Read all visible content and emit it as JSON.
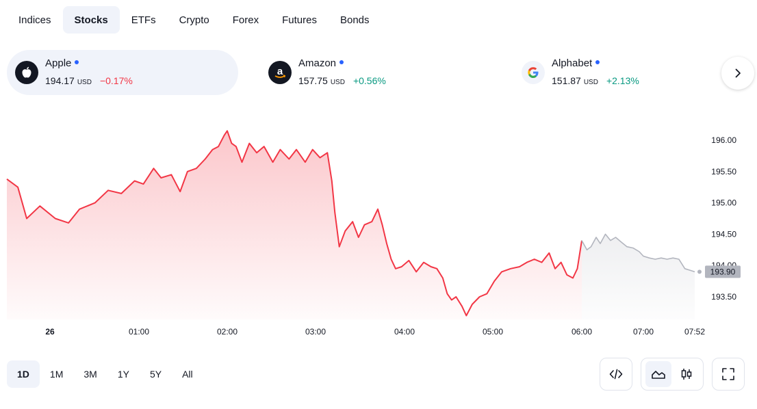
{
  "tabs": [
    {
      "label": "Indices",
      "active": false
    },
    {
      "label": "Stocks",
      "active": true
    },
    {
      "label": "ETFs",
      "active": false
    },
    {
      "label": "Crypto",
      "active": false
    },
    {
      "label": "Forex",
      "active": false
    },
    {
      "label": "Futures",
      "active": false
    },
    {
      "label": "Bonds",
      "active": false
    }
  ],
  "tickers": [
    {
      "name": "Apple",
      "price": "194.17",
      "currency": "USD",
      "change": "−0.17%",
      "direction": "down",
      "icon": "apple-logo"
    },
    {
      "name": "Amazon",
      "price": "157.75",
      "currency": "USD",
      "change": "+0.56%",
      "direction": "up",
      "icon": "amazon-logo"
    },
    {
      "name": "Alphabet",
      "price": "151.87",
      "currency": "USD",
      "change": "+2.13%",
      "direction": "up",
      "icon": "google-logo"
    }
  ],
  "next_icon": "chevron-right-icon",
  "colors": {
    "down": "#f23645",
    "up": "#089981",
    "accent": "#2962ff",
    "after_hours": "#b2b5be",
    "active_bg": "#f0f3fa"
  },
  "chart_data": {
    "type": "area",
    "x_tick_labels": [
      "26",
      "01:00",
      "02:00",
      "03:00",
      "04:00",
      "05:00",
      "06:00",
      "07:00",
      "07:52"
    ],
    "y_tick_labels": [
      "196.00",
      "195.50",
      "195.00",
      "194.50",
      "194.00",
      "193.50"
    ],
    "ylim": [
      193.2,
      196.3
    ],
    "last_value_label": "193.90",
    "regular_session": [
      [
        "00:00",
        195.38
      ],
      [
        "00:05",
        195.25
      ],
      [
        "00:09",
        194.75
      ],
      [
        "00:15",
        194.95
      ],
      [
        "00:22",
        194.75
      ],
      [
        "00:28",
        194.68
      ],
      [
        "00:33",
        194.9
      ],
      [
        "00:40",
        195.0
      ],
      [
        "00:46",
        195.2
      ],
      [
        "00:52",
        195.15
      ],
      [
        "00:58",
        195.35
      ],
      [
        "01:03",
        195.3
      ],
      [
        "01:10",
        195.55
      ],
      [
        "01:15",
        195.4
      ],
      [
        "01:22",
        195.45
      ],
      [
        "01:28",
        195.18
      ],
      [
        "01:33",
        195.5
      ],
      [
        "01:39",
        195.55
      ],
      [
        "01:45",
        195.7
      ],
      [
        "01:50",
        195.85
      ],
      [
        "01:54",
        195.9
      ],
      [
        "01:58",
        196.08
      ],
      [
        "02:00",
        196.15
      ],
      [
        "02:03",
        195.95
      ],
      [
        "02:06",
        195.9
      ],
      [
        "02:10",
        195.65
      ],
      [
        "02:15",
        195.95
      ],
      [
        "02:20",
        195.8
      ],
      [
        "02:25",
        195.9
      ],
      [
        "02:31",
        195.65
      ],
      [
        "02:36",
        195.85
      ],
      [
        "02:42",
        195.7
      ],
      [
        "02:47",
        195.85
      ],
      [
        "02:53",
        195.65
      ],
      [
        "02:58",
        195.85
      ],
      [
        "03:03",
        195.72
      ],
      [
        "03:08",
        195.8
      ],
      [
        "03:11",
        195.35
      ],
      [
        "03:13",
        194.85
      ],
      [
        "03:16",
        194.3
      ],
      [
        "03:20",
        194.55
      ],
      [
        "03:25",
        194.7
      ],
      [
        "03:29",
        194.45
      ],
      [
        "03:33",
        194.65
      ],
      [
        "03:38",
        194.7
      ],
      [
        "03:42",
        194.9
      ],
      [
        "03:45",
        194.65
      ],
      [
        "03:48",
        194.35
      ],
      [
        "03:51",
        194.1
      ],
      [
        "03:54",
        193.95
      ],
      [
        "03:58",
        193.98
      ],
      [
        "04:03",
        194.08
      ],
      [
        "04:08",
        193.9
      ],
      [
        "04:13",
        194.05
      ],
      [
        "04:18",
        193.98
      ],
      [
        "04:22",
        193.95
      ],
      [
        "04:26",
        193.8
      ],
      [
        "04:29",
        193.55
      ],
      [
        "04:32",
        193.45
      ],
      [
        "04:35",
        193.5
      ],
      [
        "04:39",
        193.35
      ],
      [
        "04:42",
        193.2
      ],
      [
        "04:46",
        193.38
      ],
      [
        "04:51",
        193.5
      ],
      [
        "04:56",
        193.55
      ],
      [
        "05:01",
        193.75
      ],
      [
        "05:06",
        193.9
      ],
      [
        "05:12",
        193.95
      ],
      [
        "05:18",
        193.98
      ],
      [
        "05:23",
        194.05
      ],
      [
        "05:28",
        194.1
      ],
      [
        "05:33",
        194.05
      ],
      [
        "05:38",
        194.2
      ],
      [
        "05:42",
        193.95
      ],
      [
        "05:46",
        194.05
      ],
      [
        "05:50",
        193.85
      ],
      [
        "05:54",
        193.8
      ],
      [
        "05:57",
        193.95
      ],
      [
        "06:00",
        194.4
      ]
    ],
    "extended_session": [
      [
        "06:00",
        194.4
      ],
      [
        "06:05",
        194.25
      ],
      [
        "06:09",
        194.3
      ],
      [
        "06:14",
        194.45
      ],
      [
        "06:18",
        194.35
      ],
      [
        "06:23",
        194.5
      ],
      [
        "06:28",
        194.4
      ],
      [
        "06:33",
        194.45
      ],
      [
        "06:38",
        194.38
      ],
      [
        "06:44",
        194.3
      ],
      [
        "06:50",
        194.28
      ],
      [
        "06:56",
        194.22
      ],
      [
        "07:00",
        194.15
      ],
      [
        "07:06",
        194.12
      ],
      [
        "07:12",
        194.1
      ],
      [
        "07:18",
        194.12
      ],
      [
        "07:24",
        194.1
      ],
      [
        "07:30",
        194.12
      ],
      [
        "07:36",
        194.1
      ],
      [
        "07:42",
        193.95
      ],
      [
        "07:48",
        193.92
      ],
      [
        "07:52",
        193.9
      ]
    ]
  },
  "ranges": [
    {
      "label": "1D",
      "active": true
    },
    {
      "label": "1M",
      "active": false
    },
    {
      "label": "3M",
      "active": false
    },
    {
      "label": "1Y",
      "active": false
    },
    {
      "label": "5Y",
      "active": false
    },
    {
      "label": "All",
      "active": false
    }
  ],
  "tools": [
    {
      "icon": "embed-code-icon",
      "active": false
    },
    {
      "icon": "area-chart-icon",
      "active": true
    },
    {
      "icon": "candlestick-icon",
      "active": false
    },
    {
      "icon": "fullscreen-icon",
      "active": false
    }
  ]
}
